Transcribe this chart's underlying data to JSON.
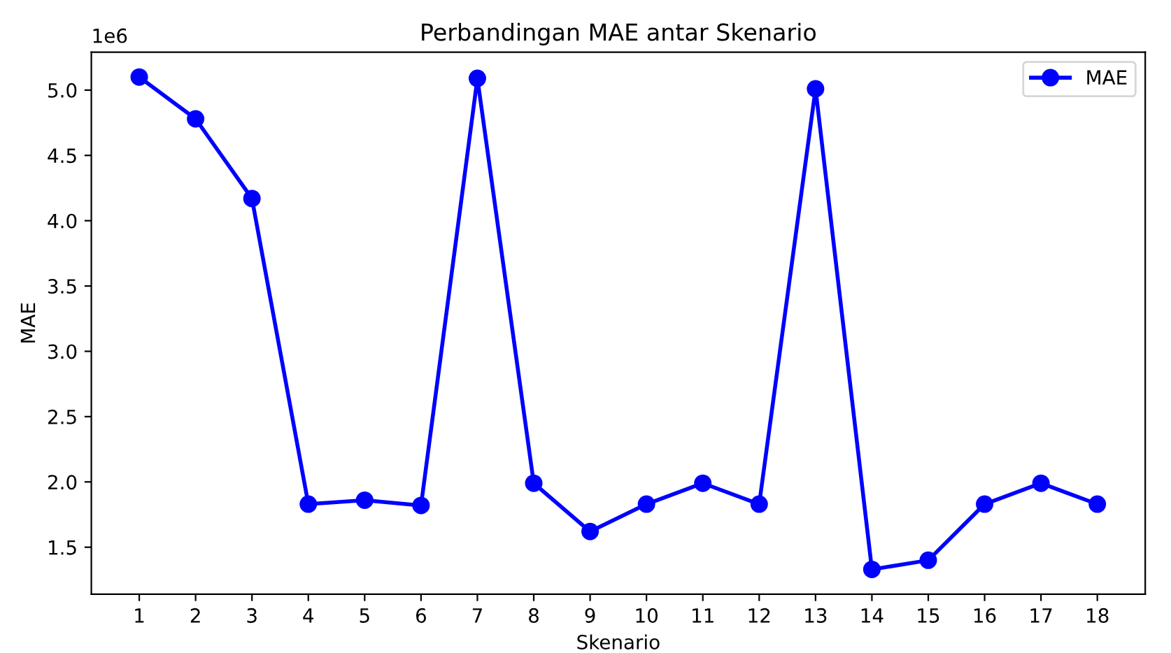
{
  "chart_data": {
    "type": "line",
    "title": "Perbandingan MAE antar Skenario",
    "xlabel": "Skenario",
    "ylabel": "MAE",
    "categories": [
      "1",
      "2",
      "3",
      "4",
      "5",
      "6",
      "7",
      "8",
      "9",
      "10",
      "11",
      "12",
      "13",
      "14",
      "15",
      "16",
      "17",
      "18"
    ],
    "series": [
      {
        "name": "MAE",
        "color": "#0000ff",
        "values": [
          5.1,
          4.78,
          4.17,
          1.83,
          1.86,
          1.82,
          5.09,
          1.99,
          1.62,
          1.83,
          1.99,
          1.83,
          5.01,
          1.33,
          1.4,
          1.83,
          1.99,
          1.83
        ]
      }
    ],
    "ylim": [
      1.14,
      5.29
    ],
    "yticks": [
      {
        "value": 1.5,
        "label": "1.5"
      },
      {
        "value": 2,
        "label": "2.0"
      },
      {
        "value": 2.5,
        "label": "2.5"
      },
      {
        "value": 3,
        "label": "3.0"
      },
      {
        "value": 3.5,
        "label": "3.5"
      },
      {
        "value": 4,
        "label": "4.0"
      },
      {
        "value": 4.5,
        "label": "4.5"
      },
      {
        "value": 5,
        "label": "5.0"
      }
    ],
    "annotations": [
      "1e6"
    ],
    "marker": "circle",
    "line_style": "solid",
    "legend": "top right",
    "grid": false
  }
}
